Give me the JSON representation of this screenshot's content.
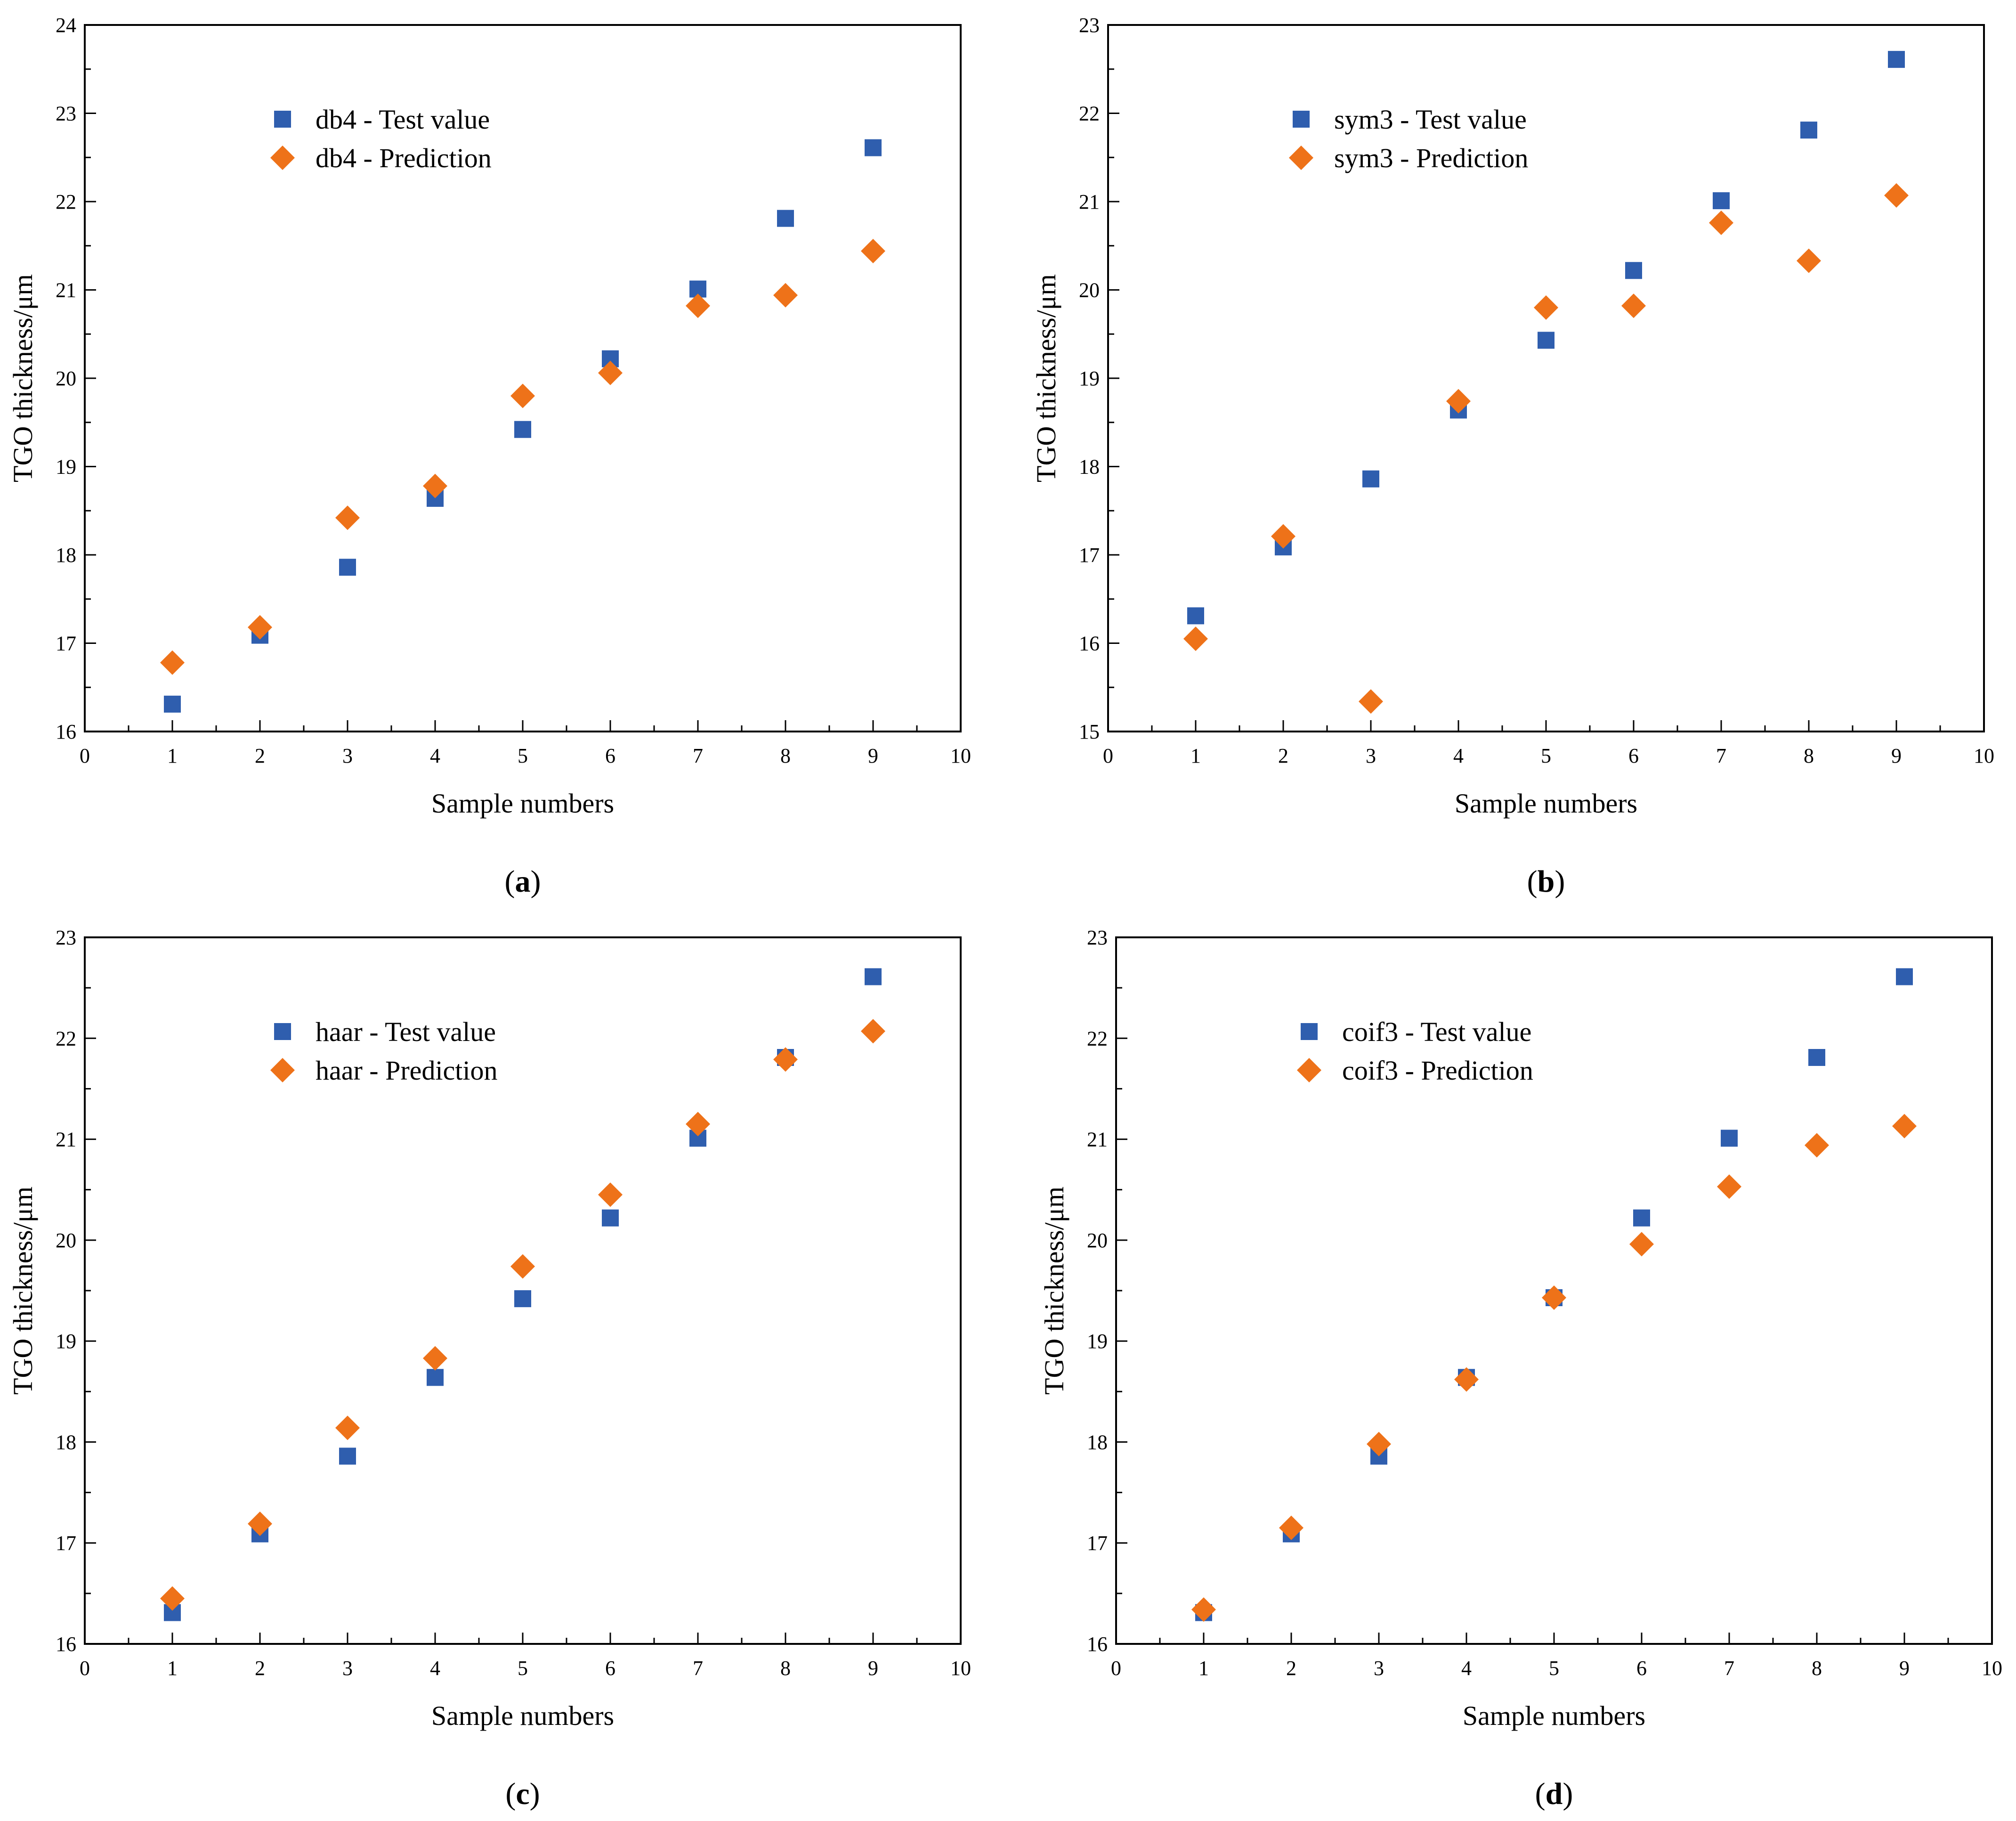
{
  "chart_data": [
    {
      "type": "scatter",
      "panel_label": "a",
      "xlabel": "Sample numbers",
      "ylabel": "TGO thickness/μm",
      "xlim": [
        0,
        10
      ],
      "ylim": [
        16,
        24
      ],
      "xticks": [
        0,
        1,
        2,
        3,
        4,
        5,
        6,
        7,
        8,
        9,
        10
      ],
      "yticks": [
        16,
        17,
        18,
        19,
        20,
        21,
        22,
        23,
        24
      ],
      "legend_position": "top-left",
      "series": [
        {
          "name": "db4 - Test value",
          "marker": "square",
          "color": "#2F5EAE",
          "x": [
            1,
            2,
            3,
            4,
            5,
            6,
            7,
            8,
            9
          ],
          "y": [
            16.31,
            17.09,
            17.86,
            18.64,
            19.42,
            20.22,
            21.01,
            21.81,
            22.61
          ]
        },
        {
          "name": "db4 - Prediction",
          "marker": "diamond",
          "color": "#EE7219",
          "x": [
            1,
            2,
            3,
            4,
            5,
            6,
            7,
            8,
            9
          ],
          "y": [
            16.78,
            17.18,
            18.42,
            18.78,
            19.8,
            20.06,
            20.82,
            20.94,
            21.44
          ]
        }
      ]
    },
    {
      "type": "scatter",
      "panel_label": "b",
      "xlabel": "Sample numbers",
      "ylabel": "TGO thickness/μm",
      "xlim": [
        0,
        10
      ],
      "ylim": [
        15,
        23
      ],
      "xticks": [
        0,
        1,
        2,
        3,
        4,
        5,
        6,
        7,
        8,
        9,
        10
      ],
      "yticks": [
        15,
        16,
        17,
        18,
        19,
        20,
        21,
        22,
        23
      ],
      "legend_position": "top-left",
      "series": [
        {
          "name": "sym3 - Test value",
          "marker": "square",
          "color": "#2F5EAE",
          "x": [
            1,
            2,
            3,
            4,
            5,
            6,
            7,
            8,
            9
          ],
          "y": [
            16.31,
            17.09,
            17.86,
            18.64,
            19.43,
            20.22,
            21.01,
            21.81,
            22.61
          ]
        },
        {
          "name": "sym3 - Prediction",
          "marker": "diamond",
          "color": "#EE7219",
          "x": [
            1,
            2,
            3,
            4,
            5,
            6,
            7,
            8,
            9
          ],
          "y": [
            16.05,
            17.21,
            15.34,
            18.74,
            19.8,
            19.82,
            20.76,
            20.33,
            21.07
          ]
        }
      ]
    },
    {
      "type": "scatter",
      "panel_label": "c",
      "xlabel": "Sample numbers",
      "ylabel": "TGO thickness/μm",
      "xlim": [
        0,
        10
      ],
      "ylim": [
        16,
        23
      ],
      "xticks": [
        0,
        1,
        2,
        3,
        4,
        5,
        6,
        7,
        8,
        9,
        10
      ],
      "yticks": [
        16,
        17,
        18,
        19,
        20,
        21,
        22,
        23
      ],
      "legend_position": "top-left",
      "series": [
        {
          "name": "haar - Test value",
          "marker": "square",
          "color": "#2F5EAE",
          "x": [
            1,
            2,
            3,
            4,
            5,
            6,
            7,
            8,
            9
          ],
          "y": [
            16.31,
            17.09,
            17.86,
            18.64,
            19.42,
            20.22,
            21.01,
            21.81,
            22.61
          ]
        },
        {
          "name": "haar - Prediction",
          "marker": "diamond",
          "color": "#EE7219",
          "x": [
            1,
            2,
            3,
            4,
            5,
            6,
            7,
            8,
            9
          ],
          "y": [
            16.45,
            17.19,
            18.14,
            18.83,
            19.74,
            20.45,
            21.15,
            21.79,
            22.07
          ]
        }
      ]
    },
    {
      "type": "scatter",
      "panel_label": "d",
      "xlabel": "Sample numbers",
      "ylabel": "TGO thickness/μm",
      "xlim": [
        0,
        10
      ],
      "ylim": [
        16,
        23
      ],
      "xticks": [
        0,
        1,
        2,
        3,
        4,
        5,
        6,
        7,
        8,
        9,
        10
      ],
      "yticks": [
        16,
        17,
        18,
        19,
        20,
        21,
        22,
        23
      ],
      "legend_position": "top-left",
      "series": [
        {
          "name": "coif3 - Test value",
          "marker": "square",
          "color": "#2F5EAE",
          "x": [
            1,
            2,
            3,
            4,
            5,
            6,
            7,
            8,
            9
          ],
          "y": [
            16.31,
            17.09,
            17.86,
            18.64,
            19.43,
            20.22,
            21.01,
            21.81,
            22.61
          ]
        },
        {
          "name": "coif3 - Prediction",
          "marker": "diamond",
          "color": "#EE7219",
          "x": [
            1,
            2,
            3,
            4,
            5,
            6,
            7,
            8,
            9
          ],
          "y": [
            16.34,
            17.15,
            17.98,
            18.62,
            19.43,
            19.96,
            20.53,
            20.94,
            21.13
          ]
        }
      ]
    }
  ]
}
